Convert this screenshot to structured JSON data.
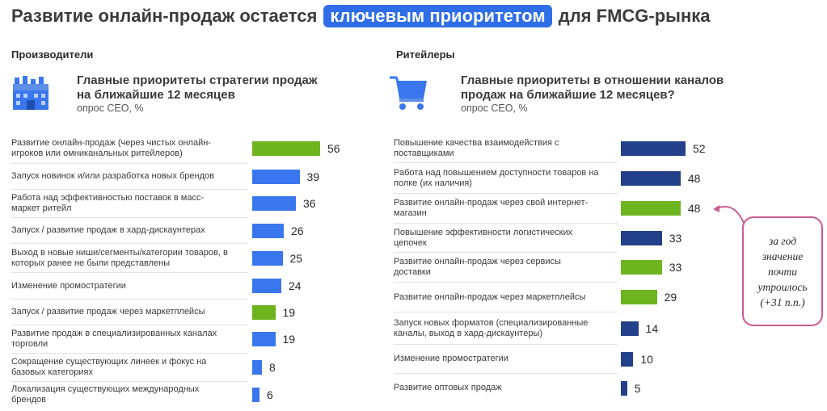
{
  "title": {
    "before": "Развитие онлайн-продаж остается",
    "highlight": "ключевым приоритетом",
    "after": "для FMCG-рынка"
  },
  "colors": {
    "highlight": "#2f6ee8",
    "producers_bar": "#3a77ee",
    "retailers_bar": "#23418a",
    "online_bar": "#6db41f",
    "callout_border": "#cc5a8e"
  },
  "producers": {
    "section": "Производители",
    "icon": "factory-icon",
    "heading_line1": "Главные приоритеты стратегии продаж",
    "heading_line2": "на ближайшие 12 месяцев",
    "subtitle": "опрос CEO, %"
  },
  "retailers": {
    "section": "Ритейлеры",
    "icon": "shopping-cart-icon",
    "heading_line1": "Главные приоритеты в отношении каналов",
    "heading_line2": "продаж на ближайшие 12 месяцев?",
    "subtitle": "опрос CEO, %"
  },
  "callout": {
    "text": "за год\nзначение\nпочти\nутроилось\n(+31 п.п.)"
  },
  "chart_data": [
    {
      "type": "bar",
      "orientation": "horizontal",
      "title": "Главные приоритеты стратегии продаж на ближайшие 12 месяцев",
      "subtitle": "опрос CEO, %",
      "categories": [
        "Развитие онлайн-продаж (через чистых онлайн-игроков или омниканальных ритейлеров)",
        "Запуск новинок и/или разработка новых брендов",
        "Работа над эффективностью поставок в масс-маркет ритейл",
        "Запуск / развитие продаж в хард-дискаунтерах",
        "Выход в новые ниши/сегменты/категории товаров, в которых ранее не были представлены",
        "Изменение промостратегии",
        "Запуск / развитие продаж через маркетплейсы",
        "Развитие продаж в специализированных каналах торговли",
        "Сокращение существующих линеек и фокус на базовых категориях",
        "Локализация существующих международных брендов"
      ],
      "values": [
        56,
        39,
        36,
        26,
        25,
        24,
        19,
        19,
        8,
        6
      ],
      "highlighted": [
        true,
        false,
        false,
        false,
        false,
        false,
        true,
        false,
        false,
        false
      ]
    },
    {
      "type": "bar",
      "orientation": "horizontal",
      "title": "Главные приоритеты в отношении каналов продаж на ближайшие 12 месяцев?",
      "subtitle": "опрос CEO, %",
      "categories": [
        "Повышение качества взаимодействия с поставщиками",
        "Работа над повышением доступности товаров на полке (их наличия)",
        "Развитие онлайн-продаж через свой интернет-магазин",
        "Повышение эффективности логистических цепочек",
        "Развитие онлайн-продаж через сервисы доставки",
        "Развитие онлайн-продаж через маркетплейсы",
        "Запуск новых форматов (специализированные каналы, выход в хард-дискаунтеры)",
        "Изменение промостратегии",
        "Развитие оптовых продаж"
      ],
      "values": [
        52,
        48,
        48,
        33,
        33,
        29,
        14,
        10,
        5
      ],
      "highlighted": [
        false,
        false,
        true,
        false,
        true,
        true,
        false,
        false,
        false
      ]
    }
  ]
}
